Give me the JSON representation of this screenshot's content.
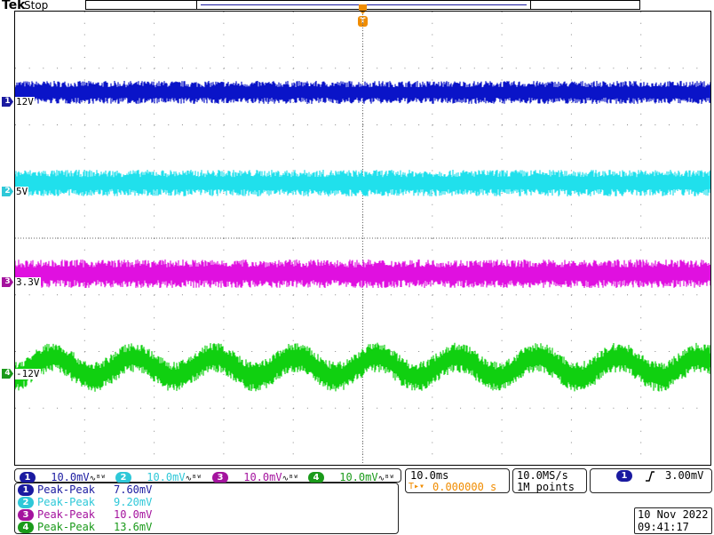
{
  "header": {
    "brand": "Tek",
    "status": "Stop"
  },
  "trigger_marker": {
    "letter": "T"
  },
  "colors": {
    "ch1": "#1a1aa0",
    "ch1_trace": "#0a14c8",
    "ch2": "#2ec8d8",
    "ch2_trace": "#20e0ec",
    "ch3": "#a4139e",
    "ch3_trace": "#e010e0",
    "ch4": "#1a9a1a",
    "ch4_trace": "#10d010",
    "trigger": "#f08c00"
  },
  "channels": [
    {
      "id": "1",
      "label": "12V",
      "scale": "10.0mV",
      "coupling_icon": "∿ᴮᵂ"
    },
    {
      "id": "2",
      "label": "5V",
      "scale": "10.0mV",
      "coupling_icon": "∿ᴮᵂ"
    },
    {
      "id": "3",
      "label": "3.3V",
      "scale": "10.0mV",
      "coupling_icon": "∿ᴮᵂ"
    },
    {
      "id": "4",
      "label": "-12V",
      "scale": "10.0mV",
      "coupling_icon": "∿ᴮᵂ"
    }
  ],
  "measurements": [
    {
      "channel": "1",
      "name": "Peak-Peak",
      "value": "7.60mV"
    },
    {
      "channel": "2",
      "name": "Peak-Peak",
      "value": "9.20mV"
    },
    {
      "channel": "3",
      "name": "Peak-Peak",
      "value": "10.0mV"
    },
    {
      "channel": "4",
      "name": "Peak-Peak",
      "value": "13.6mV"
    }
  ],
  "timebase": {
    "scale": "10.0ms",
    "trigger_offset_icon": "T▸▾",
    "trigger_offset": "0.000000 s"
  },
  "acquisition": {
    "sample_rate": "10.0MS/s",
    "record_length": "1M points"
  },
  "trigger": {
    "source": "1",
    "slope_icon": "rising-edge-icon",
    "level": "3.00mV"
  },
  "datetime": {
    "date": "10 Nov 2022",
    "time": "09:41:17"
  }
}
